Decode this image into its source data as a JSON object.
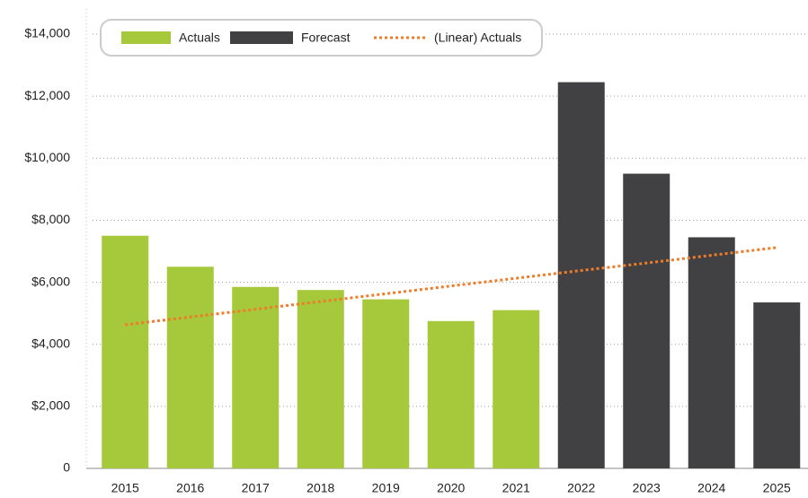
{
  "chart_data": {
    "type": "bar",
    "categories": [
      "2015",
      "2016",
      "2017",
      "2018",
      "2019",
      "2020",
      "2021",
      "2022",
      "2023",
      "2024",
      "2025"
    ],
    "series": [
      {
        "name": "Actuals",
        "color": "#a5c93a",
        "values": [
          7500,
          6500,
          5850,
          5750,
          5450,
          4750,
          5100,
          null,
          null,
          null,
          null
        ]
      },
      {
        "name": "Forecast",
        "color": "#414143",
        "values": [
          null,
          null,
          null,
          null,
          null,
          null,
          null,
          12450,
          9500,
          7450,
          5350
        ]
      },
      {
        "name": "(Linear) Actuals",
        "type": "line",
        "color": "#f07c2a",
        "values": [
          4630,
          4880,
          5130,
          5380,
          5630,
          5880,
          6130,
          6380,
          6620,
          6870,
          7120
        ]
      }
    ],
    "ylim": [
      0,
      14000
    ],
    "yticks": [
      0,
      {
        "value": 2000,
        "label": "$2,000"
      },
      {
        "value": 4000,
        "label": "$4,000"
      },
      {
        "value": 6000,
        "label": "$6,000"
      },
      {
        "value": 8000,
        "label": "$8,000"
      },
      {
        "value": 10000,
        "label": "$10,000"
      },
      {
        "value": 12000,
        "label": "$12,000"
      },
      {
        "value": 14000,
        "label": "$14,000"
      }
    ],
    "grid": true
  }
}
